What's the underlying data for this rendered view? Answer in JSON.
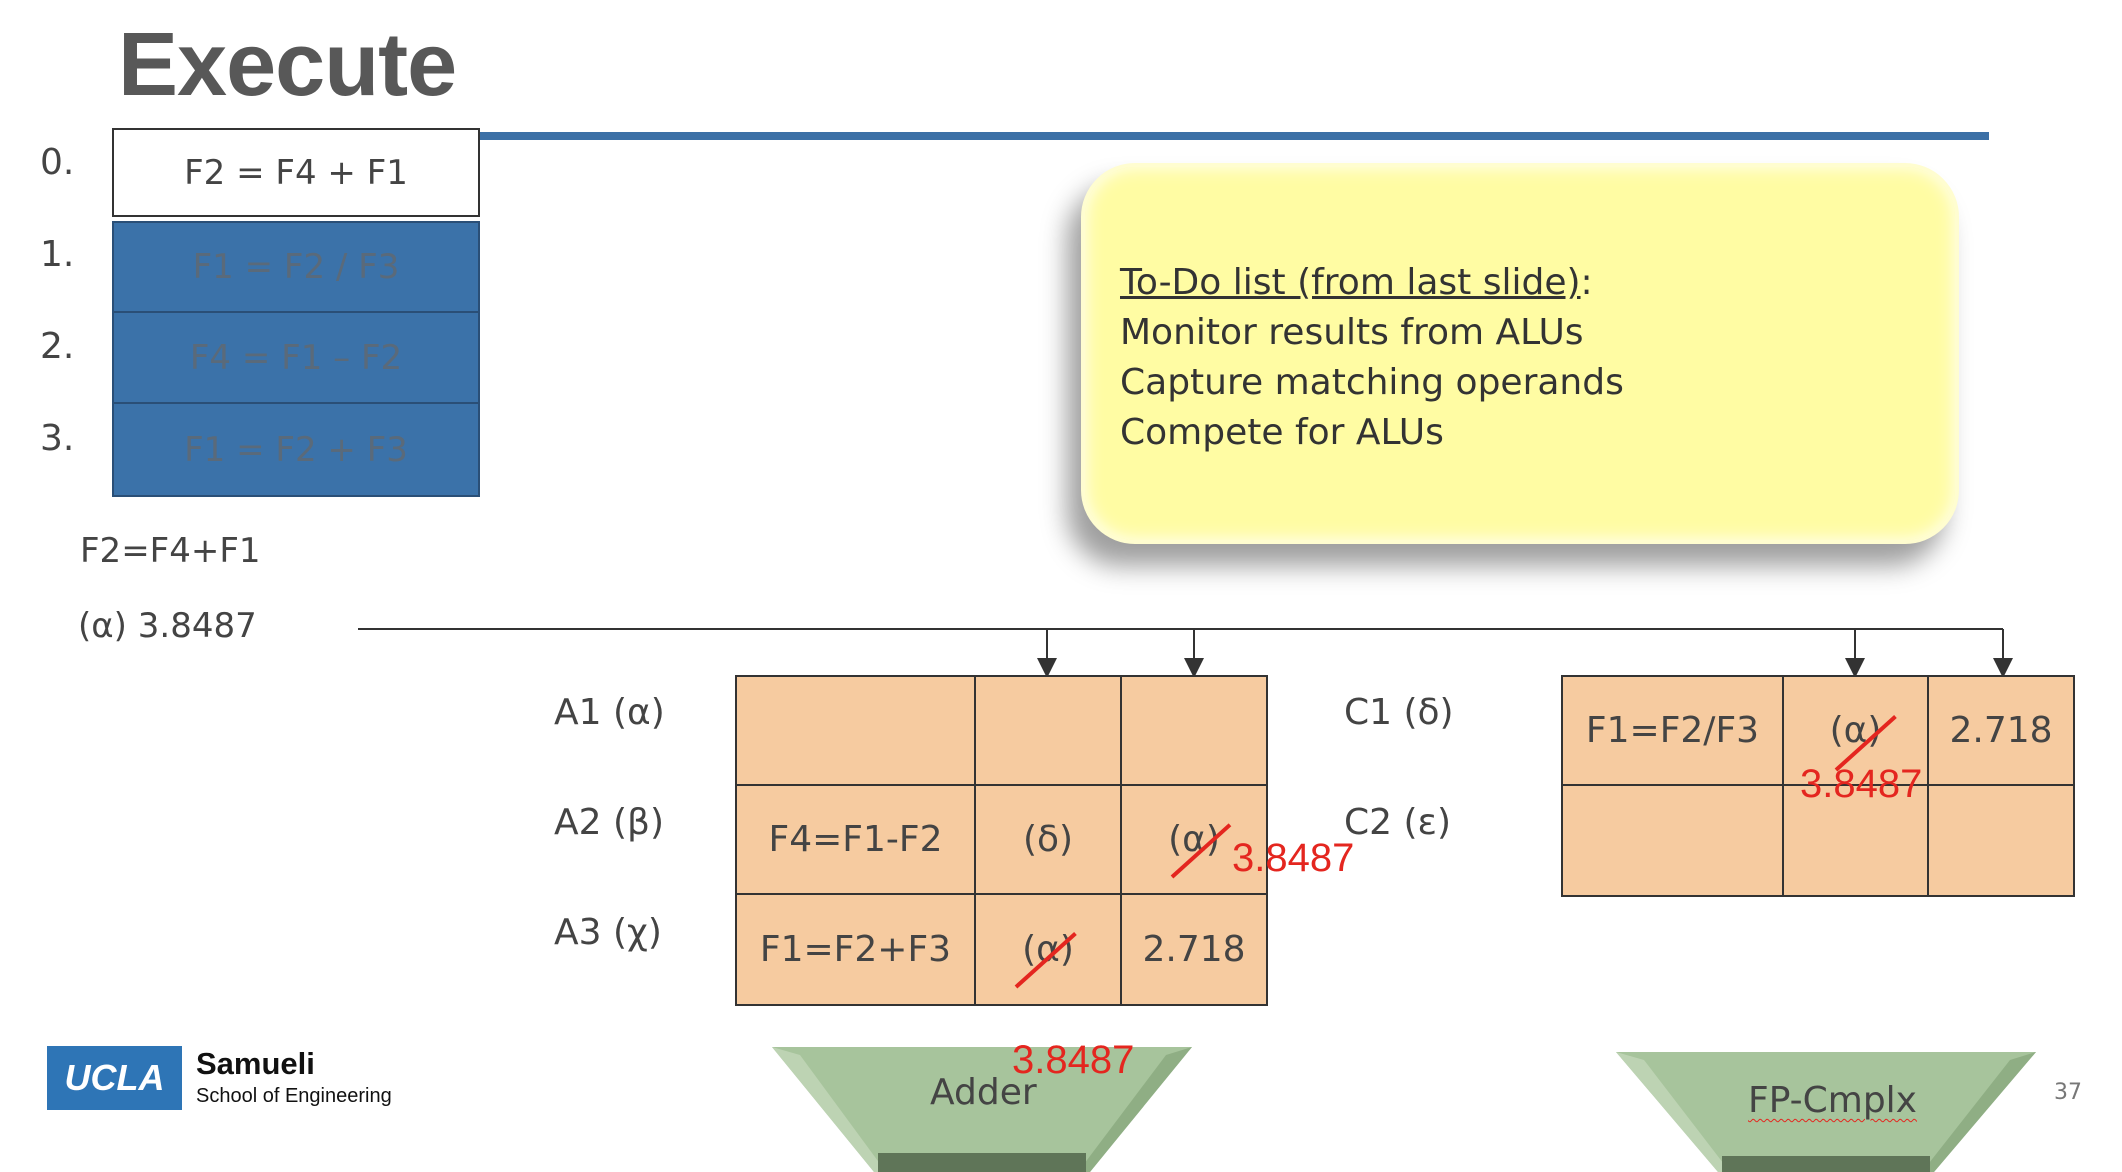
{
  "title": "Execute",
  "program": {
    "numbers": [
      "0.",
      "1.",
      "2.",
      "3."
    ],
    "instructions": [
      "F2 = F4 + F1",
      "F1 = F2 / F3",
      "F4 = F1 – F2",
      "F1 = F2 + F3"
    ]
  },
  "broadcast": {
    "instruction": "F2=F4+F1",
    "tag_value": "(α) 3.8487"
  },
  "todo": {
    "title": "To-Do list (from last slide)",
    "colon": ":",
    "items": [
      "Monitor results from ALUs",
      "Capture matching operands",
      "Compete for ALUs"
    ]
  },
  "adder_station": {
    "labels": [
      "A1 (α)",
      "A2 (β)",
      "A3 (χ)"
    ],
    "rows": [
      [
        "",
        "",
        ""
      ],
      [
        "F4=F1-F2",
        "(δ)",
        "(α)"
      ],
      [
        "F1=F2+F3",
        "(α)",
        "2.718"
      ]
    ],
    "overwrites": [
      "3.8487",
      "3.8487"
    ]
  },
  "cmplx_station": {
    "labels": [
      "C1 (δ)",
      "C2 (ε)"
    ],
    "rows": [
      [
        "F1=F2/F3",
        "(α)",
        "2.718"
      ],
      [
        "",
        "",
        ""
      ]
    ],
    "overwrite": "3.8487"
  },
  "units": {
    "adder": "Adder",
    "fp": "FP-Cmplx",
    "adder_value": "3.8487"
  },
  "logo": {
    "ucla": "UCLA",
    "name": "Samueli",
    "school": "School of Engineering"
  },
  "page_number": "37",
  "colors": {
    "accent_blue": "#3b72a9",
    "rs_fill": "#f6cba0",
    "alu_fill": "#a7c49c",
    "note_fill": "#fffca3",
    "red": "#e4261f"
  }
}
